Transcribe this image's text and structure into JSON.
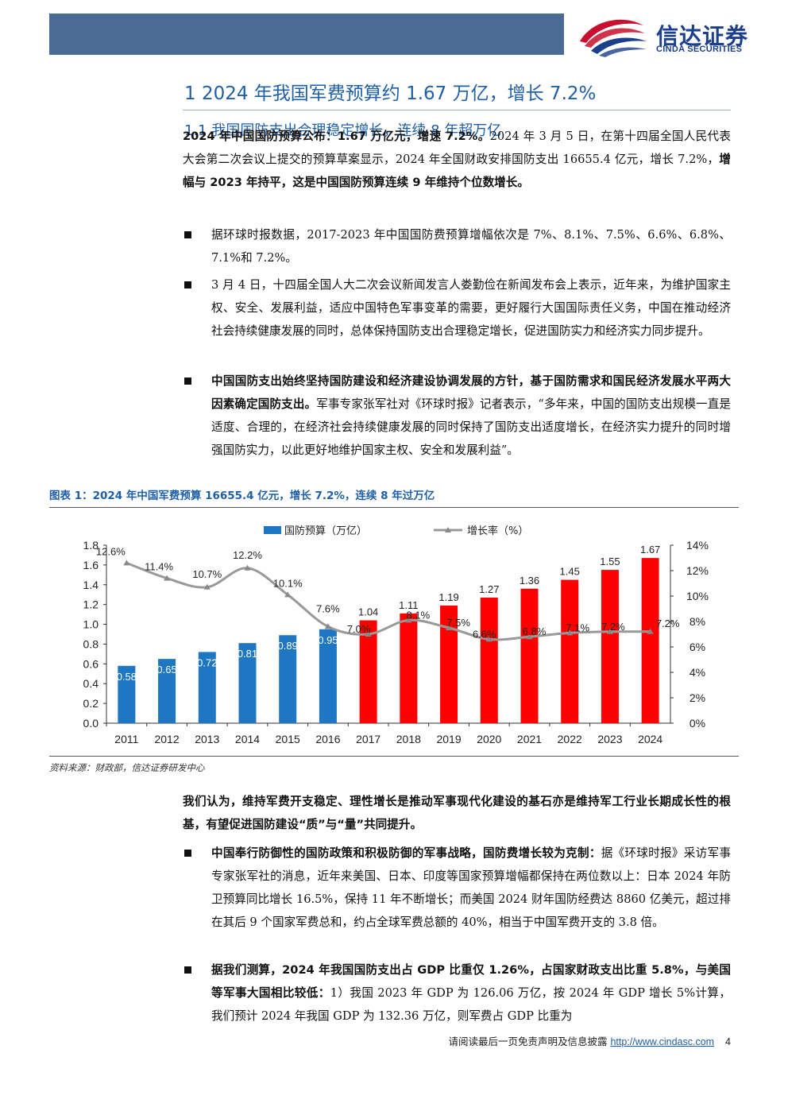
{
  "header": {
    "logo_cn": "信达证券",
    "logo_en": "CINDA SECURITIES",
    "bar_color": "#4a6b93"
  },
  "h1": "1 2024 年我国军费预算约 1.67 万亿，增长 7.2%",
  "h2": "1.1 我国国防支出合理稳定增长，连续 8 年超万亿",
  "p1": {
    "b1": "2024 年中国国防预算公布：1.67 万亿元，增速 7.2%。",
    "t1": "2024 年 3 月 5 日，在第十四届全国人民代表大会第二次会议上提交的预算草案显示，2024 年全国财政安排国防支出 16655.4 亿元，增长 7.2%，",
    "b2": "增幅与 2023 年持平，这是中国国防预算连续 9 年维持个位数增长。"
  },
  "bullets1": [
    {
      "bold": "",
      "text": "据环球时报数据，2017-2023 年中国国防费预算增幅依次是 7%、8.1%、7.5%、6.6%、6.8%、7.1%和 7.2%。"
    },
    {
      "bold": "",
      "text": "3 月 4 日，十四届全国人大二次会议新闻发言人娄勤俭在新闻发布会上表示，近年来，为维护国家主权、安全、发展利益，适应中国特色军事变革的需要，更好履行大国国际责任义务，中国在推动经济社会持续健康发展的同时，总体保持国防支出合理稳定增长，促进国防实力和经济实力同步提升。"
    },
    {
      "bold": "中国国防支出始终坚持国防建设和经济建设协调发展的方针，基于国防需求和国民经济发展水平两大因素确定国防支出。",
      "text": "军事专家张军社对《环球时报》记者表示，“多年来，中国的国防支出规模一直是适度、合理的，在经济社会持续健康发展的同时保持了国防支出适度增长，在经济实力提升的同时增强国防实力，以此更好地维护国家主权、安全和发展利益”。"
    }
  ],
  "figure": {
    "title": "图表 1：2024 年中国军费预算 16655.4 亿元，增长 7.2%，连续 8 年过万亿",
    "source": "资料来源：财政部，信达证券研发中心"
  },
  "chart_data": {
    "type": "bar",
    "categories": [
      "2011",
      "2012",
      "2013",
      "2014",
      "2015",
      "2016",
      "2017",
      "2018",
      "2019",
      "2020",
      "2021",
      "2022",
      "2023",
      "2024"
    ],
    "series": [
      {
        "name": "国防预算（万亿）",
        "type": "bar",
        "axis": "left",
        "values": [
          0.58,
          0.65,
          0.72,
          0.81,
          0.89,
          0.95,
          1.04,
          1.11,
          1.19,
          1.27,
          1.36,
          1.45,
          1.55,
          1.67
        ],
        "labels": [
          "0.58",
          "0.65",
          "0.72",
          "0.81",
          "0.89",
          "0.95",
          "1.04",
          "1.11",
          "1.19",
          "1.27",
          "1.36",
          "1.45",
          "1.55",
          "1.67"
        ],
        "colors": [
          "#1f77c4",
          "#1f77c4",
          "#1f77c4",
          "#1f77c4",
          "#1f77c4",
          "#1f77c4",
          "#ff0000",
          "#ff0000",
          "#ff0000",
          "#ff0000",
          "#ff0000",
          "#ff0000",
          "#ff0000",
          "#ff0000"
        ]
      },
      {
        "name": "增长率（%）",
        "type": "line",
        "axis": "right",
        "color": "#999999",
        "values": [
          12.6,
          11.4,
          10.7,
          12.2,
          10.1,
          7.6,
          7.0,
          8.1,
          7.5,
          6.6,
          6.8,
          7.1,
          7.2,
          7.2
        ],
        "labels": [
          "12.6%",
          "11.4%",
          "10.7%",
          "12.2%",
          "10.1%",
          "7.6%",
          "7.0%",
          "8.1%",
          "7.5%",
          "6.6%",
          "6.8%",
          "7.1%",
          "7.2%",
          "7.2%"
        ]
      }
    ],
    "ylim_left": [
      0,
      1.8
    ],
    "yticks_left": [
      "0.0",
      "0.2",
      "0.4",
      "0.6",
      "0.8",
      "1.0",
      "1.2",
      "1.4",
      "1.6",
      "1.8"
    ],
    "ylim_right": [
      0,
      14
    ],
    "yticks_right": [
      "0%",
      "2%",
      "4%",
      "6%",
      "8%",
      "10%",
      "12%",
      "14%"
    ],
    "legend_position": "top-center",
    "grid": false
  },
  "p2": {
    "b1": "我们认为，维持军费开支稳定、理性增长是推动军事现代化建设的基石亦是维持军工行业长期成长性的根基，有望促进国防建设“质”与“量”共同提升。"
  },
  "bullets2": [
    {
      "bold": "中国奉行防御性的国防政策和积极防御的军事战略，国防费增长较为克制：",
      "text": "据《环球时报》采访军事专家张军社的消息，近年来美国、日本、印度等国家预算增幅都保持在两位数以上：日本 2024 年防卫预算同比增长 16.5%，保持 11 年不断增长；而美国 2024 财年国防经费达 8860 亿美元，超过排在其后 9 个国家军费总和，约占全球军费总额的 40%，相当于中国军费开支的 3.8 倍。"
    },
    {
      "bold": "据我们测算，2024 年我国国防支出占 GDP 比重仅 1.26%，占国家财政支出比重 5.8%，与美国等军事大国相比较低：",
      "text": "1）我国 2023 年 GDP 为 126.06 万亿，按 2024 年 GDP 增长 5%计算，我们预计 2024 年我国 GDP 为 132.36 万亿，则军费占 GDP 比重为"
    }
  ],
  "footer": {
    "disclaimer": "请阅读最后一页免责声明及信息披露",
    "url": "http://www.cindasc.com",
    "page": "4"
  }
}
